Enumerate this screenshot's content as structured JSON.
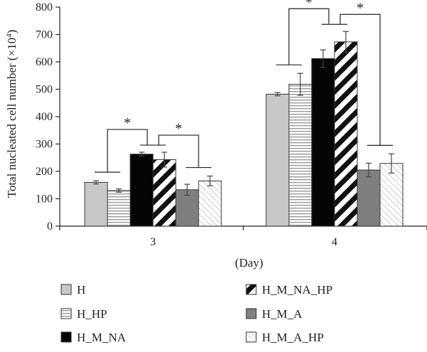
{
  "chart_data": {
    "type": "bar",
    "title": "",
    "xlabel": "(Day)",
    "ylabel": "Total nucleated cell number (×10",
    "ylabel_superscript": "4",
    "ylabel_suffix": ")",
    "ylim": [
      0,
      800
    ],
    "yticks": [
      0,
      100,
      200,
      300,
      400,
      500,
      600,
      700,
      800
    ],
    "grid": false,
    "legend_position": "bottom",
    "categories": [
      "3",
      "4"
    ],
    "series": [
      {
        "name": "H",
        "values": [
          160,
          482
        ],
        "errors": [
          6,
          6
        ],
        "pattern": "solid-lightgray"
      },
      {
        "name": "H_HP",
        "values": [
          130,
          518
        ],
        "errors": [
          6,
          40
        ],
        "pattern": "horizontal-stripes"
      },
      {
        "name": "H_M_NA",
        "values": [
          263,
          612
        ],
        "errors": [
          7,
          32
        ],
        "pattern": "solid-black"
      },
      {
        "name": "H_M_NA_HP",
        "values": [
          243,
          673
        ],
        "errors": [
          27,
          38
        ],
        "pattern": "diagonal-stripes"
      },
      {
        "name": "H_M_A",
        "values": [
          133,
          205
        ],
        "errors": [
          20,
          25
        ],
        "pattern": "solid-darkgray"
      },
      {
        "name": "H_M_A_HP",
        "values": [
          165,
          229
        ],
        "errors": [
          18,
          35
        ],
        "pattern": "light-texture"
      }
    ],
    "annotations": [
      {
        "text": "*",
        "category": "3",
        "compare": "H,H_HP vs H_M_NA,H_M_NA_HP"
      },
      {
        "text": "*",
        "category": "3",
        "compare": "H_M_NA,H_M_NA_HP vs H_M_A,H_M_A_HP"
      },
      {
        "text": "*",
        "category": "4",
        "compare": "H,H_HP vs H_M_NA,H_M_NA_HP"
      },
      {
        "text": "*",
        "category": "4",
        "compare": "H_M_NA,H_M_NA_HP vs H_M_A,H_M_A_HP"
      }
    ]
  }
}
